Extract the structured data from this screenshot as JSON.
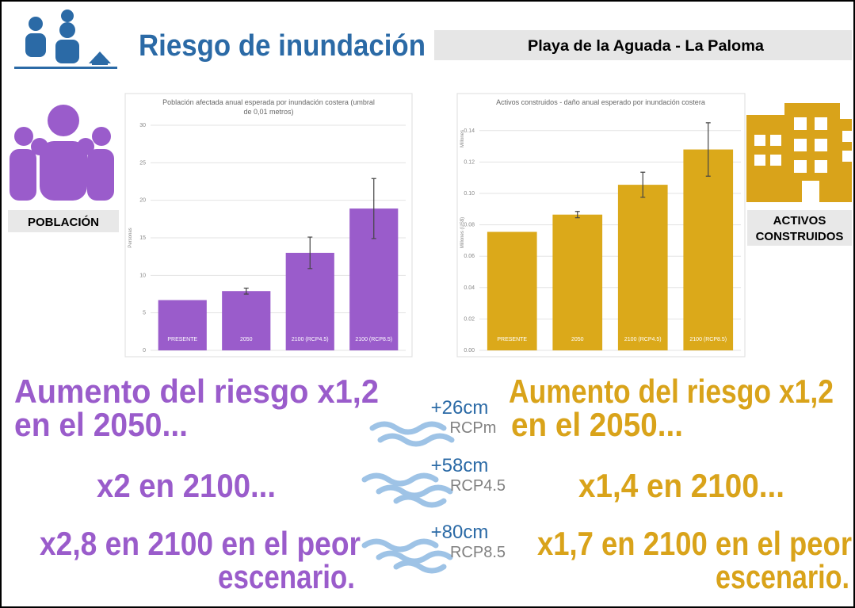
{
  "header": {
    "title": "Riesgo de inundación",
    "location": "Playa de la Aguada - La Paloma"
  },
  "labels": {
    "left": "POBLACIÓN",
    "right": [
      "ACTIVOS",
      "CONSTRUIDOS"
    ]
  },
  "chart_data": [
    {
      "type": "bar",
      "title": [
        "Población afectada anual esperada por inundación costera (umbral",
        "de 0,01 metros)"
      ],
      "y_label": "Personas",
      "categories": [
        "PRESENTE",
        "2050",
        "2100 (RCP4.5)",
        "2100 (RCP8.5)"
      ],
      "values": [
        6.7,
        7.9,
        13.0,
        18.9
      ],
      "errors": [
        null,
        0.4,
        2.1,
        4.0
      ],
      "color": "#9a5ccb",
      "ylim": [
        0,
        30
      ],
      "yticks": [
        0,
        5,
        10,
        15,
        20,
        25,
        30
      ],
      "grid": true
    },
    {
      "type": "bar",
      "title": [
        "Activos construidos - daño anual esperado por inundación costera"
      ],
      "y_label": "Millones (US$)",
      "y_unit": "Millones",
      "categories": [
        "PRESENTE",
        "2050",
        "2100 (RCP4.5)",
        "2100 (RCP8.5)"
      ],
      "values": [
        0.0755,
        0.0865,
        0.1055,
        0.128
      ],
      "errors": [
        null,
        0.002,
        0.008,
        0.017
      ],
      "color": "#dba91a",
      "ylim": [
        0,
        0.15
      ],
      "yticks": [
        {
          "value": 0,
          "label": "0.00"
        },
        0.02,
        0.04,
        0.06,
        0.08,
        {
          "value": 0.1,
          "label": "0.10"
        },
        0.12,
        0.14
      ],
      "grid": true
    }
  ],
  "scenarios": [
    {
      "rise": "+26cm",
      "name": "RCPm"
    },
    {
      "rise": "+58cm",
      "name": "RCP4.5"
    },
    {
      "rise": "+80cm",
      "name": "RCP8.5"
    }
  ],
  "left_notes": [
    [
      "Aumento del riesgo x1,2",
      "en el 2050..."
    ],
    [
      "x2 en 2100..."
    ],
    [
      "x2,8 en 2100 en el peor",
      "escenario."
    ]
  ],
  "right_notes": [
    [
      "Aumento del riesgo x1,2",
      "en el 2050..."
    ],
    [
      "x1,4 en 2100..."
    ],
    [
      "x1,7 en 2100 en el peor",
      "escenario."
    ]
  ]
}
